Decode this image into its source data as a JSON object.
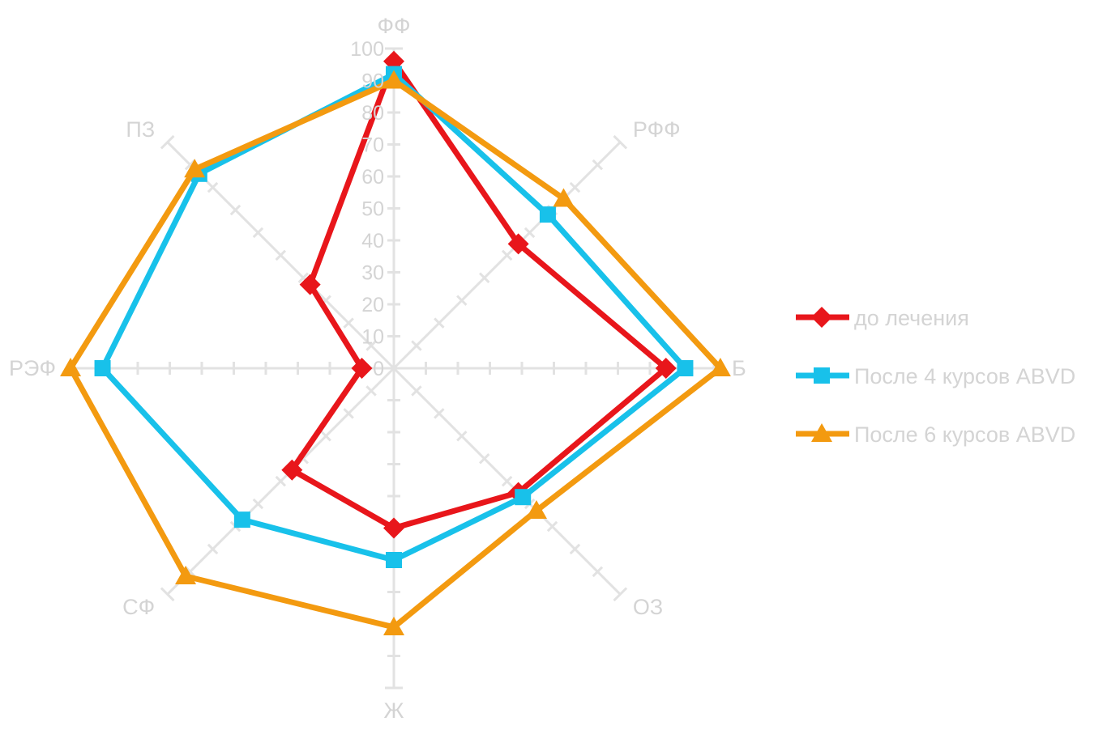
{
  "chart_data": {
    "type": "radar",
    "axes": [
      "ФФ",
      "РФФ",
      "Б",
      "ОЗ",
      "Ж",
      "СФ",
      "РЭФ",
      "ПЗ"
    ],
    "r_range": [
      0,
      100
    ],
    "r_ticks": [
      "0",
      "10",
      "20",
      "30",
      "40",
      "50",
      "60",
      "70",
      "80",
      "90",
      "100"
    ],
    "grid": false,
    "legend_position": "right",
    "series": [
      {
        "name": "до лечения",
        "marker": "diamond",
        "color": "#e8161b",
        "values": [
          96,
          55,
          85,
          55,
          50,
          45,
          10,
          37
        ]
      },
      {
        "name": "После 4 курсов ABVD",
        "marker": "square",
        "color": "#18c1ea",
        "values": [
          92,
          68,
          91,
          57,
          60,
          67,
          91,
          86
        ]
      },
      {
        "name": "После 6 курсов ABVD",
        "marker": "triangle",
        "color": "#f39a10",
        "values": [
          90,
          75,
          102,
          63,
          81,
          92,
          101,
          88
        ]
      }
    ]
  }
}
